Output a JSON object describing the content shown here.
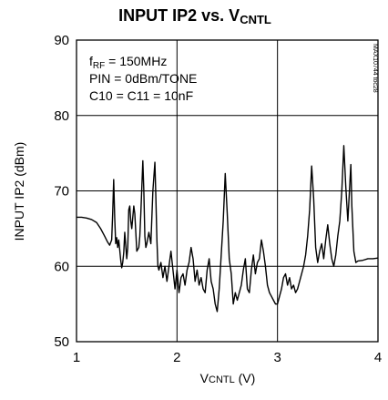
{
  "chart_data": {
    "type": "line",
    "title": {
      "main": "INPUT IP2 vs. V",
      "sub": "CNTL"
    },
    "xlabel": {
      "main": "V",
      "sub": "CNTL",
      "tail": " (V)"
    },
    "ylabel": "INPUT IP2 (dBm)",
    "xlim": [
      1,
      4
    ],
    "ylim": [
      50,
      90
    ],
    "x_ticks": [
      1,
      2,
      3,
      4
    ],
    "y_ticks": [
      50,
      60,
      70,
      80,
      90
    ],
    "grid": true,
    "annotations": [
      {
        "main": "f",
        "sub": "RF",
        "tail": " = 150MHz"
      },
      {
        "main": "PIN = 0dBm/TONE",
        "sub": "",
        "tail": ""
      },
      {
        "main": "C10 = C11 = 10nF",
        "sub": "",
        "tail": ""
      }
    ],
    "side_code": "MAX10744 toc28",
    "series": [
      {
        "x": [
          1.0,
          1.05,
          1.1,
          1.15,
          1.2,
          1.24,
          1.28,
          1.31,
          1.33,
          1.35,
          1.36,
          1.37,
          1.38,
          1.39,
          1.4,
          1.41,
          1.42,
          1.43,
          1.44,
          1.45,
          1.46,
          1.47,
          1.48,
          1.5,
          1.51,
          1.52,
          1.53,
          1.54,
          1.55,
          1.57,
          1.58,
          1.59,
          1.6,
          1.62,
          1.63,
          1.64,
          1.65,
          1.66,
          1.67,
          1.68,
          1.69,
          1.7,
          1.72,
          1.74,
          1.76,
          1.78,
          1.79,
          1.8,
          1.81,
          1.82,
          1.84,
          1.86,
          1.88,
          1.9,
          1.92,
          1.94,
          1.96,
          1.98,
          2.0,
          2.02,
          2.04,
          2.06,
          2.08,
          2.1,
          2.12,
          2.14,
          2.16,
          2.18,
          2.2,
          2.22,
          2.24,
          2.26,
          2.28,
          2.3,
          2.32,
          2.34,
          2.36,
          2.38,
          2.4,
          2.42,
          2.44,
          2.46,
          2.48,
          2.5,
          2.52,
          2.54,
          2.56,
          2.58,
          2.6,
          2.62,
          2.64,
          2.66,
          2.68,
          2.7,
          2.72,
          2.74,
          2.76,
          2.78,
          2.8,
          2.82,
          2.84,
          2.86,
          2.88,
          2.9,
          2.92,
          2.94,
          2.96,
          2.98,
          3.0,
          3.02,
          3.04,
          3.06,
          3.08,
          3.1,
          3.12,
          3.14,
          3.16,
          3.18,
          3.2,
          3.22,
          3.24,
          3.26,
          3.28,
          3.3,
          3.32,
          3.34,
          3.36,
          3.38,
          3.4,
          3.42,
          3.44,
          3.46,
          3.48,
          3.5,
          3.52,
          3.54,
          3.56,
          3.58,
          3.6,
          3.62,
          3.64,
          3.66,
          3.68,
          3.7,
          3.72,
          3.73,
          3.74,
          3.76,
          3.78,
          3.8,
          3.85,
          3.9,
          3.95,
          4.0
        ],
        "y": [
          66.5,
          66.5,
          66.4,
          66.2,
          65.8,
          65.0,
          64.0,
          63.2,
          62.8,
          63.5,
          67.0,
          71.5,
          66.5,
          63.0,
          63.8,
          62.5,
          63.5,
          62.2,
          60.8,
          59.8,
          60.5,
          61.8,
          64.5,
          61.0,
          62.5,
          67.5,
          68.0,
          66.0,
          65.0,
          68.0,
          67.0,
          64.5,
          62.0,
          62.5,
          64.0,
          67.0,
          70.5,
          74.0,
          70.0,
          64.0,
          62.5,
          63.0,
          64.5,
          63.0,
          70.0,
          73.8,
          69.0,
          63.5,
          60.0,
          59.5,
          60.5,
          58.5,
          60.0,
          58.0,
          60.0,
          62.0,
          59.5,
          57.0,
          59.5,
          56.5,
          58.5,
          59.0,
          57.5,
          59.5,
          60.5,
          62.5,
          61.0,
          58.0,
          59.5,
          57.5,
          58.5,
          57.0,
          56.5,
          59.5,
          61.0,
          58.0,
          57.0,
          55.0,
          54.0,
          57.0,
          61.5,
          66.0,
          72.3,
          67.0,
          61.0,
          59.0,
          55.0,
          56.5,
          55.5,
          56.5,
          57.5,
          59.5,
          61.0,
          57.0,
          56.5,
          59.5,
          61.5,
          59.0,
          60.5,
          61.0,
          63.5,
          62.0,
          60.0,
          57.5,
          56.5,
          56.0,
          55.5,
          55.0,
          55.0,
          56.0,
          57.0,
          58.5,
          59.0,
          57.5,
          58.5,
          57.0,
          57.5,
          56.5,
          57.0,
          58.0,
          59.0,
          60.0,
          61.5,
          64.0,
          67.5,
          73.3,
          69.0,
          62.5,
          60.5,
          62.0,
          63.0,
          61.0,
          63.5,
          65.5,
          63.0,
          61.0,
          60.0,
          61.5,
          64.0,
          66.0,
          70.0,
          76.0,
          70.5,
          66.0,
          71.0,
          73.5,
          68.0,
          62.0,
          60.5,
          60.7,
          60.8,
          61.0,
          61.0,
          61.1
        ]
      }
    ]
  }
}
